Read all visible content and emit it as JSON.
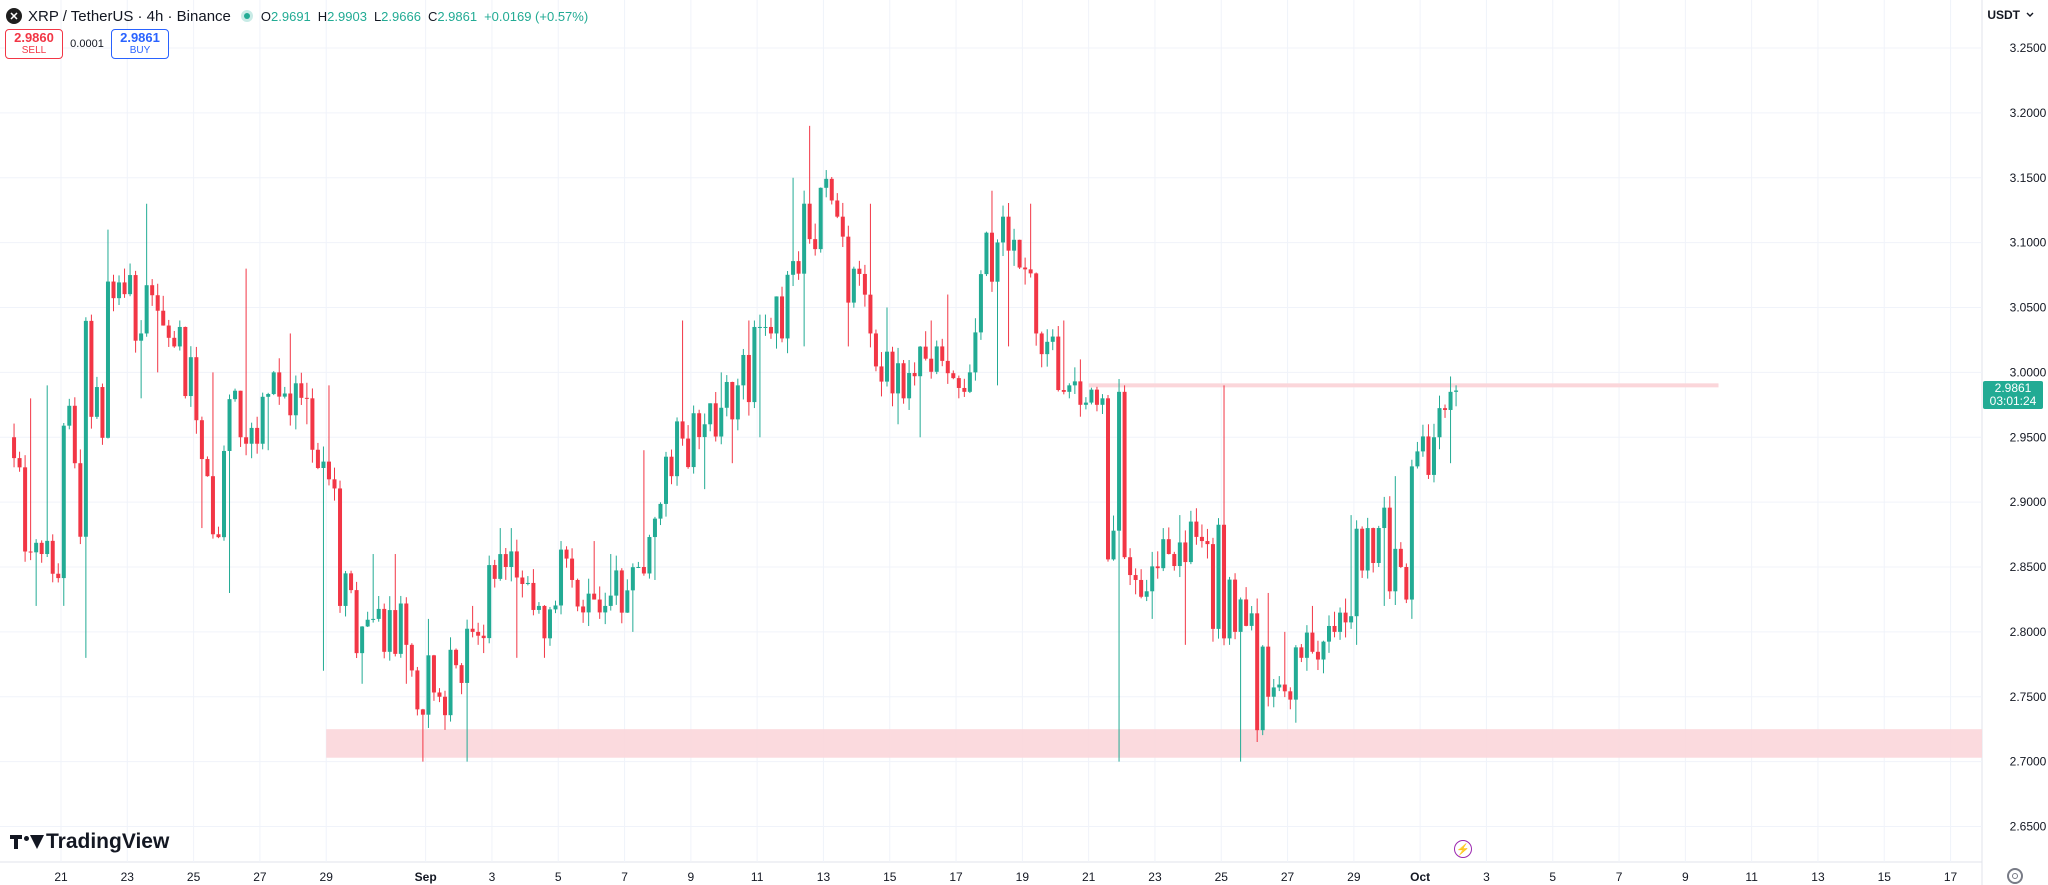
{
  "header": {
    "symbol_icon": "xrp-logo-icon",
    "icon_glyph": "✕",
    "title": "XRP / TetherUS · 4h · Binance",
    "ohlc": [
      {
        "key": "O",
        "value": "2.9691"
      },
      {
        "key": "H",
        "value": "2.9903"
      },
      {
        "key": "L",
        "value": "2.9666"
      },
      {
        "key": "C",
        "value": "2.9861"
      }
    ],
    "change": "+0.0169 (+0.57%)"
  },
  "trade": {
    "sell_price": "2.9860",
    "sell_label": "SELL",
    "spread": "0.0001",
    "buy_price": "2.9861",
    "buy_label": "BUY"
  },
  "currency": {
    "label": "USDT",
    "icon": "chevron-down-icon"
  },
  "price_tag": {
    "price": "2.9861",
    "countdown": "03:01:24"
  },
  "brand": {
    "name": "TradingView"
  },
  "colors": {
    "up": "#22ab94",
    "down": "#f23645",
    "zone": "#fbd6da",
    "grid": "#f0f3fa"
  },
  "chart_data": {
    "type": "candlestick",
    "symbol": "XRP / TetherUS",
    "interval": "4h",
    "exchange": "Binance",
    "ylim": [
      2.63,
      3.27
    ],
    "y_ticks": [
      "3.2500",
      "3.2000",
      "3.1500",
      "3.1000",
      "3.0500",
      "3.0000",
      "2.9500",
      "2.9000",
      "2.8500",
      "2.8000",
      "2.7500",
      "2.7000",
      "2.6500"
    ],
    "x_ticks": [
      "21",
      "23",
      "25",
      "27",
      "29",
      "Sep",
      "3",
      "5",
      "7",
      "9",
      "11",
      "13",
      "15",
      "17",
      "19",
      "21",
      "23",
      "25",
      "27",
      "29",
      "Oct",
      "3",
      "5",
      "7",
      "9",
      "11",
      "13",
      "15",
      "17"
    ],
    "x_tick_dates": [
      "2025-08-21",
      "2025-08-23",
      "2025-08-25",
      "2025-08-27",
      "2025-08-29",
      "2025-09-01",
      "2025-09-03",
      "2025-09-05",
      "2025-09-07",
      "2025-09-09",
      "2025-09-11",
      "2025-09-13",
      "2025-09-15",
      "2025-09-17",
      "2025-09-19",
      "2025-09-21",
      "2025-09-23",
      "2025-09-25",
      "2025-09-27",
      "2025-09-29",
      "2025-10-01",
      "2025-10-03",
      "2025-10-05",
      "2025-10-07",
      "2025-10-09",
      "2025-10-11",
      "2025-10-13",
      "2025-10-15",
      "2025-10-17"
    ],
    "daily": [
      {
        "date": "2025-08-20",
        "o": 2.95,
        "h": 2.98,
        "l": 2.82,
        "c": 2.86
      },
      {
        "date": "2025-08-21",
        "o": 2.86,
        "h": 2.99,
        "l": 2.82,
        "c": 2.93
      },
      {
        "date": "2025-08-22",
        "o": 2.93,
        "h": 3.11,
        "l": 2.78,
        "c": 3.07
      },
      {
        "date": "2025-08-23",
        "o": 3.07,
        "h": 3.08,
        "l": 2.98,
        "c": 3.03
      },
      {
        "date": "2025-08-24",
        "o": 3.03,
        "h": 3.13,
        "l": 3.0,
        "c": 3.02
      },
      {
        "date": "2025-08-25",
        "o": 3.02,
        "h": 3.04,
        "l": 2.88,
        "c": 2.92
      },
      {
        "date": "2025-08-26",
        "o": 2.92,
        "h": 3.0,
        "l": 2.83,
        "c": 2.95
      },
      {
        "date": "2025-08-27",
        "o": 2.95,
        "h": 3.08,
        "l": 2.94,
        "c": 3.0
      },
      {
        "date": "2025-08-28",
        "o": 3.0,
        "h": 3.03,
        "l": 2.96,
        "c": 2.98
      },
      {
        "date": "2025-08-29",
        "o": 2.98,
        "h": 2.99,
        "l": 2.77,
        "c": 2.82
      },
      {
        "date": "2025-08-30",
        "o": 2.82,
        "h": 2.86,
        "l": 2.76,
        "c": 2.81
      },
      {
        "date": "2025-08-31",
        "o": 2.81,
        "h": 2.86,
        "l": 2.76,
        "c": 2.79
      },
      {
        "date": "2025-09-01",
        "o": 2.79,
        "h": 2.81,
        "l": 2.7,
        "c": 2.75
      },
      {
        "date": "2025-09-02",
        "o": 2.75,
        "h": 2.82,
        "l": 2.7,
        "c": 2.8
      },
      {
        "date": "2025-09-03",
        "o": 2.8,
        "h": 2.88,
        "l": 2.79,
        "c": 2.85
      },
      {
        "date": "2025-09-04",
        "o": 2.85,
        "h": 2.88,
        "l": 2.78,
        "c": 2.82
      },
      {
        "date": "2025-09-05",
        "o": 2.82,
        "h": 2.87,
        "l": 2.78,
        "c": 2.84
      },
      {
        "date": "2025-09-06",
        "o": 2.84,
        "h": 2.87,
        "l": 2.81,
        "c": 2.82
      },
      {
        "date": "2025-09-07",
        "o": 2.82,
        "h": 2.86,
        "l": 2.8,
        "c": 2.85
      },
      {
        "date": "2025-09-08",
        "o": 2.85,
        "h": 2.94,
        "l": 2.84,
        "c": 2.92
      },
      {
        "date": "2025-09-09",
        "o": 2.92,
        "h": 3.04,
        "l": 2.91,
        "c": 2.96
      },
      {
        "date": "2025-09-10",
        "o": 2.96,
        "h": 3.0,
        "l": 2.93,
        "c": 2.99
      },
      {
        "date": "2025-09-11",
        "o": 2.99,
        "h": 3.04,
        "l": 2.95,
        "c": 3.03
      },
      {
        "date": "2025-09-12",
        "o": 3.03,
        "h": 3.15,
        "l": 3.02,
        "c": 3.13
      },
      {
        "date": "2025-09-13",
        "o": 3.13,
        "h": 3.19,
        "l": 3.09,
        "c": 3.12
      },
      {
        "date": "2025-09-14",
        "o": 3.12,
        "h": 3.13,
        "l": 3.02,
        "c": 3.03
      },
      {
        "date": "2025-09-15",
        "o": 3.03,
        "h": 3.05,
        "l": 2.96,
        "c": 2.98
      },
      {
        "date": "2025-09-16",
        "o": 2.98,
        "h": 3.04,
        "l": 2.95,
        "c": 3.02
      },
      {
        "date": "2025-09-17",
        "o": 3.02,
        "h": 3.06,
        "l": 2.98,
        "c": 3.0
      },
      {
        "date": "2025-09-18",
        "o": 3.0,
        "h": 3.14,
        "l": 2.99,
        "c": 3.12
      },
      {
        "date": "2025-09-19",
        "o": 3.12,
        "h": 3.13,
        "l": 3.02,
        "c": 3.03
      },
      {
        "date": "2025-09-20",
        "o": 3.03,
        "h": 3.04,
        "l": 2.98,
        "c": 2.99
      },
      {
        "date": "2025-09-21",
        "o": 2.99,
        "h": 3.01,
        "l": 2.97,
        "c": 2.98
      },
      {
        "date": "2025-09-22",
        "o": 2.98,
        "h": 2.99,
        "l": 2.7,
        "c": 2.84
      },
      {
        "date": "2025-09-23",
        "o": 2.84,
        "h": 2.88,
        "l": 2.81,
        "c": 2.86
      },
      {
        "date": "2025-09-24",
        "o": 2.86,
        "h": 2.89,
        "l": 2.79,
        "c": 2.87
      },
      {
        "date": "2025-09-25",
        "o": 2.87,
        "h": 2.99,
        "l": 2.79,
        "c": 2.8
      },
      {
        "date": "2025-09-26",
        "o": 2.8,
        "h": 2.83,
        "l": 2.7,
        "c": 2.75
      },
      {
        "date": "2025-09-27",
        "o": 2.75,
        "h": 2.8,
        "l": 2.73,
        "c": 2.78
      },
      {
        "date": "2025-09-28",
        "o": 2.78,
        "h": 2.82,
        "l": 2.77,
        "c": 2.8
      },
      {
        "date": "2025-09-29",
        "o": 2.8,
        "h": 2.89,
        "l": 2.79,
        "c": 2.88
      },
      {
        "date": "2025-09-30",
        "o": 2.88,
        "h": 2.92,
        "l": 2.82,
        "c": 2.85
      },
      {
        "date": "2025-10-01",
        "o": 2.85,
        "h": 2.96,
        "l": 2.81,
        "c": 2.95
      },
      {
        "date": "2025-10-02",
        "o": 2.95,
        "h": 2.99,
        "l": 2.93,
        "c": 2.986
      }
    ],
    "lines": [
      {
        "type": "resistance",
        "price": 2.99,
        "from": "2025-09-21",
        "to": "2025-10-10"
      }
    ],
    "zones": [
      {
        "type": "support",
        "low": 2.703,
        "high": 2.725,
        "from": "2025-08-29"
      }
    ],
    "last_price": 2.9861
  }
}
